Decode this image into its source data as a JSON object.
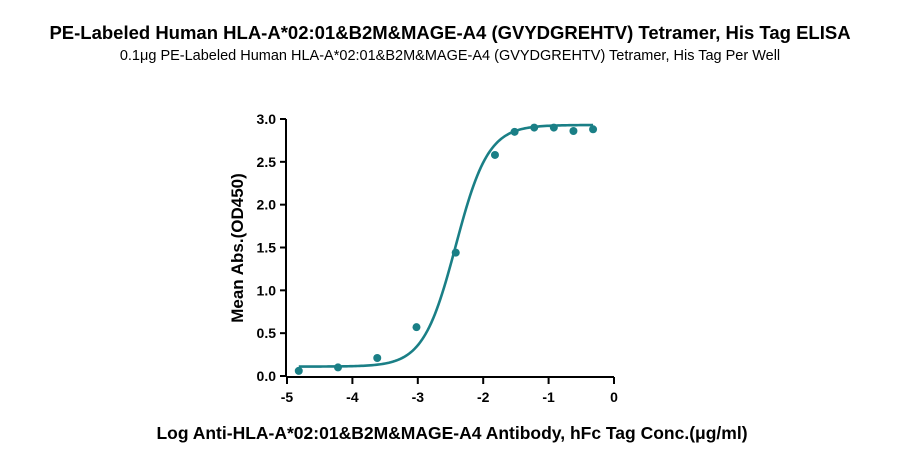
{
  "title": "PE-Labeled Human HLA-A*02:01&B2M&MAGE-A4 (GVYDGREHTV) Tetramer, His Tag ELISA",
  "subtitle": "0.1μg PE-Labeled Human HLA-A*02:01&B2M&MAGE-A4 (GVYDGREHTV) Tetramer, His Tag Per Well",
  "colors": {
    "series": "#1a7f86",
    "axis": "#000000"
  },
  "chart_data": {
    "type": "scatter",
    "title": "PE-Labeled Human HLA-A*02:01&B2M&MAGE-A4 (GVYDGREHTV) Tetramer, His Tag ELISA",
    "subtitle": "0.1μg PE-Labeled Human HLA-A*02:01&B2M&MAGE-A4 (GVYDGREHTV) Tetramer, His Tag Per Well",
    "xlabel": "Log Anti-HLA-A*02:01&B2M&MAGE-A4 Antibody, hFc Tag Conc.(μg/ml)",
    "ylabel": "Mean Abs.(OD450)",
    "xlim": [
      -5,
      0
    ],
    "ylim": [
      0,
      3.0
    ],
    "x_ticks": [
      -5,
      -4,
      -3,
      -2,
      -1,
      0
    ],
    "x_tick_labels": [
      "-5",
      "-4",
      "-3",
      "-2",
      "-1",
      "0"
    ],
    "y_ticks": [
      0,
      0.5,
      1.0,
      1.5,
      2.0,
      2.5,
      3.0
    ],
    "y_tick_labels": [
      "0.0",
      "0.5",
      "1.0",
      "1.5",
      "2.0",
      "2.5",
      "3.0"
    ],
    "grid": false,
    "series": [
      {
        "x": [
          -4.82,
          -4.22,
          -3.62,
          -3.02,
          -2.42,
          -1.82,
          -1.52,
          -1.22,
          -0.92,
          -0.62,
          -0.32
        ],
        "y": [
          0.06,
          0.1,
          0.21,
          0.57,
          1.44,
          2.58,
          2.85,
          2.9,
          2.9,
          2.86,
          2.88
        ],
        "fit": {
          "model": "4PL",
          "bottom": 0.11,
          "top": 2.93,
          "log_ec50": -2.42,
          "hill_slope": 1.75
        }
      }
    ]
  }
}
